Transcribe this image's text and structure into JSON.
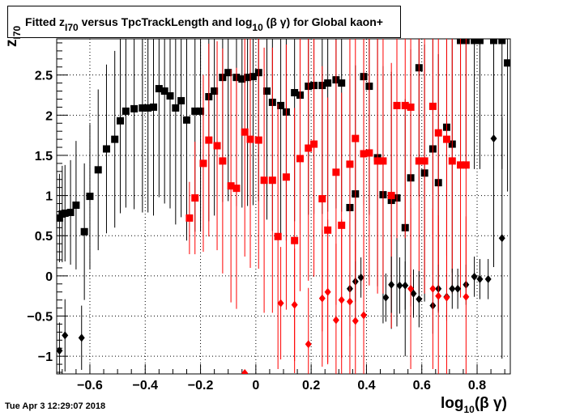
{
  "chart_data": {
    "type": "scatter",
    "title": {
      "prefix": "Fitted  z",
      "sub1": "I70",
      "middle": "  versus TpcTrackLength and log",
      "sub2": "10",
      "suffix": " (β γ) for Global kaon+"
    },
    "xlabel": {
      "main": "log",
      "sub": "10",
      "rest": " (β γ)"
    },
    "ylabel": {
      "main": "z",
      "sub": "I70"
    },
    "xlim": [
      -0.72,
      0.92
    ],
    "ylim": [
      -1.22,
      2.95
    ],
    "x_ticks": [
      -0.6,
      -0.4,
      -0.2,
      0,
      0.2,
      0.4,
      0.6,
      0.8
    ],
    "x_tick_labels": [
      "−0.6",
      "−0.4",
      "−0.2",
      "0",
      "0.2",
      "0.4",
      "0.6",
      "0.8"
    ],
    "y_ticks": [
      -1,
      -0.5,
      0,
      0.5,
      1,
      1.5,
      2,
      2.5
    ],
    "y_tick_labels": [
      "−1",
      "−0.5",
      "0",
      "0.5",
      "1",
      "1.5",
      "2",
      "2.5"
    ],
    "grid": true,
    "timestamp": "Tue Apr  3 12:29:07 2018",
    "colors": {
      "black": "#000000",
      "red": "#ff0000"
    },
    "series": [
      {
        "marker": "square",
        "color": "#000000",
        "x": [
          -0.71,
          -0.7,
          -0.69,
          -0.67,
          -0.65,
          -0.62,
          -0.6,
          -0.57,
          -0.54,
          -0.51,
          -0.49,
          -0.47,
          -0.44,
          -0.41,
          -0.39,
          -0.37,
          -0.35,
          -0.33,
          -0.31,
          -0.29,
          -0.27,
          -0.25,
          -0.22,
          -0.2,
          -0.17,
          -0.15,
          -0.12,
          -0.1,
          -0.07,
          -0.05,
          -0.03,
          -0.01,
          0.01,
          0.04,
          0.06,
          0.09,
          0.11,
          0.14,
          0.16,
          0.19,
          0.21,
          0.24,
          0.26,
          0.29,
          0.31,
          0.34,
          0.36,
          0.39,
          0.41,
          0.44,
          0.46,
          0.49,
          0.51,
          0.54,
          0.56,
          0.59,
          0.61,
          0.64,
          0.66,
          0.69,
          0.71,
          0.74,
          0.76,
          0.79,
          0.81,
          0.86,
          0.89,
          0.91
        ],
        "y": [
          0.72,
          0.77,
          0.78,
          0.79,
          0.88,
          0.55,
          0.99,
          1.32,
          1.58,
          1.7,
          1.93,
          2.05,
          2.08,
          2.09,
          2.09,
          2.1,
          2.33,
          2.3,
          2.24,
          2.09,
          2.18,
          1.94,
          2.05,
          2.05,
          2.23,
          2.3,
          2.47,
          2.53,
          2.47,
          2.45,
          2.47,
          2.48,
          2.53,
          2.3,
          2.16,
          2.12,
          2.04,
          2.28,
          2.25,
          2.36,
          2.37,
          2.37,
          2.4,
          2.44,
          2.4,
          0.85,
          1.02,
          2.48,
          2.36,
          1.47,
          1.01,
          0.94,
          0.97,
          0.6,
          1.22,
          2.59,
          1.28,
          1.58,
          1.16,
          1.85,
          1.64,
          2.93,
          2.93,
          2.93,
          2.93,
          2.93,
          2.93,
          2.65
        ],
        "err": [
          0.55,
          0.6,
          0.6,
          0.65,
          0.8,
          0.85,
          0.9,
          1.0,
          1.05,
          1.1,
          1.15,
          1.2,
          1.25,
          1.3,
          1.3,
          1.35,
          1.35,
          1.4,
          1.4,
          1.45,
          1.45,
          1.5,
          1.5,
          1.5,
          1.55,
          1.55,
          1.55,
          1.6,
          1.6,
          1.6,
          1.6,
          1.6,
          1.6,
          1.6,
          1.6,
          1.6,
          1.6,
          1.6,
          1.6,
          1.6,
          1.6,
          1.6,
          1.6,
          1.6,
          1.6,
          1.6,
          1.6,
          1.6,
          1.6,
          1.6,
          1.6,
          1.6,
          1.6,
          1.6,
          1.6,
          1.6,
          1.6,
          1.6,
          1.6,
          1.6,
          1.6,
          1.6,
          1.6,
          1.6,
          1.6,
          1.6,
          1.6,
          1.6
        ]
      },
      {
        "marker": "square",
        "color": "#ff0000",
        "x": [
          -0.24,
          -0.22,
          -0.19,
          -0.17,
          -0.14,
          -0.12,
          -0.09,
          -0.07,
          -0.04,
          -0.02,
          0.01,
          0.03,
          0.06,
          0.08,
          0.11,
          0.14,
          0.16,
          0.19,
          0.21,
          0.24,
          0.26,
          0.29,
          0.31,
          0.34,
          0.36,
          0.39,
          0.41,
          0.44,
          0.46,
          0.49,
          0.51,
          0.54,
          0.56,
          0.59,
          0.61,
          0.64,
          0.66,
          0.69,
          0.71,
          0.74,
          0.76
        ],
        "y": [
          0.72,
          0.97,
          1.4,
          1.69,
          1.62,
          1.43,
          1.12,
          1.09,
          1.79,
          1.7,
          1.69,
          1.19,
          1.19,
          0.49,
          1.23,
          0.44,
          1.46,
          1.59,
          1.64,
          0.96,
          0.57,
          1.29,
          0.63,
          1.39,
          1.71,
          1.52,
          1.53,
          1.43,
          1.43,
          1.0,
          2.12,
          2.12,
          2.1,
          1.43,
          1.43,
          2.11,
          1.78,
          1.7,
          1.43,
          1.38,
          1.38
        ],
        "err": [
          0.45,
          0.7,
          1.1,
          1.2,
          1.3,
          1.4,
          1.45,
          1.5,
          1.55,
          1.6,
          1.6,
          1.65,
          1.65,
          1.65,
          1.65,
          1.65,
          1.65,
          1.65,
          1.65,
          1.65,
          1.65,
          1.65,
          1.65,
          1.65,
          1.65,
          1.65,
          1.65,
          1.65,
          1.65,
          1.65,
          1.65,
          1.65,
          1.65,
          1.65,
          1.65,
          1.65,
          1.65,
          1.65,
          1.65,
          1.65,
          1.65
        ]
      },
      {
        "marker": "diamond",
        "color": "#000000",
        "x": [
          -0.71,
          -0.69,
          -0.63,
          0.34,
          0.36,
          0.38,
          0.47,
          0.49,
          0.52,
          0.54,
          0.57,
          0.59,
          0.64,
          0.66,
          0.69,
          0.71,
          0.73,
          0.76,
          0.79,
          0.81,
          0.84,
          0.86,
          0.89
        ],
        "y": [
          -0.93,
          -0.74,
          -0.77,
          -0.16,
          -0.07,
          -0.02,
          -0.27,
          -0.11,
          -0.12,
          -0.12,
          -0.22,
          -0.29,
          -0.37,
          -0.16,
          -0.26,
          -0.16,
          -0.16,
          -0.11,
          -0.01,
          -0.04,
          -0.04,
          1.71,
          0.47
        ],
        "err": [
          0.35,
          0.45,
          0.4,
          0.2,
          0.25,
          0.25,
          0.3,
          0.35,
          0.35,
          0.3,
          0.3,
          0.35,
          0.35,
          0.3,
          0.3,
          0.25,
          0.25,
          0.25,
          0.25,
          0.25,
          0.25,
          1.6,
          1.5
        ]
      },
      {
        "marker": "diamond",
        "color": "#ff0000",
        "x": [
          -0.04,
          0.09,
          0.14,
          0.19,
          0.24,
          0.26,
          0.29,
          0.31,
          0.34,
          0.36,
          0.39,
          0.56,
          0.64,
          0.66,
          0.69,
          0.76
        ],
        "y": [
          -1.21,
          -0.34,
          -0.36,
          -0.85,
          -0.28,
          -0.2,
          -0.55,
          -0.3,
          -0.32,
          -0.56,
          -0.49,
          -0.16,
          -0.16,
          -0.25,
          -0.27,
          -0.26
        ],
        "err": [
          0.01,
          0.7,
          0.7,
          0.7,
          0.85,
          0.9,
          0.95,
          1.0,
          1.0,
          1.0,
          1.0,
          1.0,
          1.0,
          1.0,
          1.0,
          1.0
        ]
      }
    ]
  }
}
